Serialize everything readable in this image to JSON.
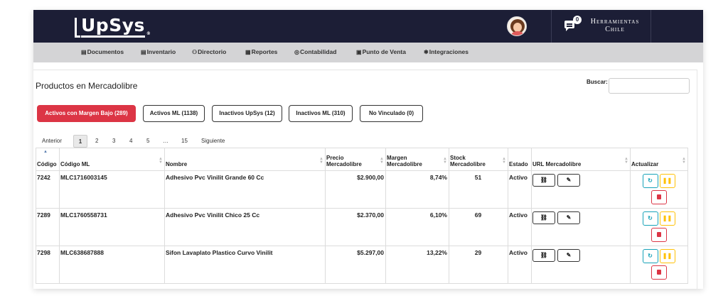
{
  "app": {
    "logo": "UpSys",
    "logo_reg": "®",
    "notification_count": "0",
    "company_line1": "Herramientas",
    "company_line2": "Chile"
  },
  "menu": {
    "items": [
      {
        "label": "Documentos",
        "icon": "document-icon"
      },
      {
        "label": "Inventario",
        "icon": "inventory-icon"
      },
      {
        "label": "Directorio",
        "icon": "people-icon"
      },
      {
        "label": "Reportes",
        "icon": "reports-icon"
      },
      {
        "label": "Contabilidad",
        "icon": "accounting-icon"
      },
      {
        "label": "Punto de Venta",
        "icon": "pos-icon"
      },
      {
        "label": "Integraciones",
        "icon": "integrations-icon"
      }
    ]
  },
  "page": {
    "title": "Productos en Mercadolibre",
    "search_label": "Buscar:",
    "search_value": ""
  },
  "filters": [
    {
      "label": "Activos con Margen Bajo (289)",
      "active": true
    },
    {
      "label": "Activos ML (1138)",
      "active": false
    },
    {
      "label": "Inactivos UpSys (12)",
      "active": false
    },
    {
      "label": "Inactivos ML (310)",
      "active": false
    },
    {
      "label": "No Vinculado (0)",
      "active": false
    }
  ],
  "pagination": {
    "prev": "Anterior",
    "pages": [
      "1",
      "2",
      "3",
      "4",
      "5",
      "…",
      "15"
    ],
    "current": "1",
    "next": "Siguiente"
  },
  "table": {
    "headers": {
      "codigo": "Código",
      "codigo_ml": "Código ML",
      "nombre": "Nombre",
      "precio_1": "Precio",
      "precio_2": "Mercadolibre",
      "margen_1": "Margen",
      "margen_2": "Mercadolibre",
      "stock_1": "Stock",
      "stock_2": "Mercadolibre",
      "estado": "Estado",
      "url": "URL Mercadolibre",
      "actualizar": "Actualizar"
    },
    "rows": [
      {
        "codigo": "7242",
        "codigo_ml": "MLC1716003145",
        "nombre": "Adhesivo Pvc Vinilit Grande 60 Cc",
        "precio": "$2.900,00",
        "margen": "8,74%",
        "stock": "51",
        "estado": "Activo"
      },
      {
        "codigo": "7289",
        "codigo_ml": "MLC1760558731",
        "nombre": "Adhesivo Pvc Vinilit Chico 25 Cc",
        "precio": "$2.370,00",
        "margen": "6,10%",
        "stock": "69",
        "estado": "Activo"
      },
      {
        "codigo": "7298",
        "codigo_ml": "MLC638687888",
        "nombre": "Sifon Lavaplato Plastico Curvo Vinilit",
        "precio": "$5.297,00",
        "margen": "13,22%",
        "stock": "29",
        "estado": "Activo"
      }
    ]
  },
  "colors": {
    "topbar": "#1c1e36",
    "menubar": "#d4d4d6",
    "active_filter": "#dc3545",
    "refresh": "#17a2b8",
    "pause": "#ffc107",
    "delete": "#dc3545"
  }
}
